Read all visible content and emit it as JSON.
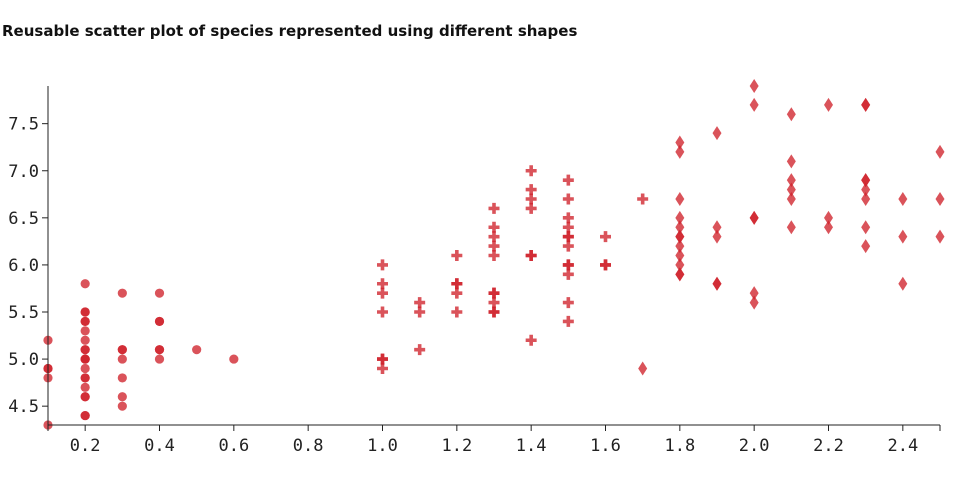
{
  "chart_data": {
    "type": "scatter",
    "title": "Reusable scatter plot of species represented using different shapes",
    "xlabel": "",
    "ylabel": "",
    "xlim": [
      0.1,
      2.5
    ],
    "ylim": [
      4.3,
      7.9
    ],
    "x_ticks": [
      "0.2",
      "0.4",
      "0.6",
      "0.8",
      "1.0",
      "1.2",
      "1.4",
      "1.6",
      "1.8",
      "2.0",
      "2.2",
      "2.4"
    ],
    "y_ticks": [
      "4.5",
      "5.0",
      "5.5",
      "6.0",
      "6.5",
      "7.0",
      "7.5"
    ],
    "grid": false,
    "color": "#d0232b",
    "series": [
      {
        "shape": "circle",
        "points": [
          [
            0.1,
            5.2
          ],
          [
            0.1,
            4.9
          ],
          [
            0.1,
            4.9
          ],
          [
            0.1,
            4.8
          ],
          [
            0.1,
            4.3
          ],
          [
            0.2,
            5.8
          ],
          [
            0.2,
            5.5
          ],
          [
            0.2,
            5.5
          ],
          [
            0.2,
            5.4
          ],
          [
            0.2,
            5.4
          ],
          [
            0.2,
            5.3
          ],
          [
            0.2,
            5.2
          ],
          [
            0.2,
            5.1
          ],
          [
            0.2,
            5.1
          ],
          [
            0.2,
            5.0
          ],
          [
            0.2,
            5.0
          ],
          [
            0.2,
            5.0
          ],
          [
            0.2,
            4.9
          ],
          [
            0.2,
            4.8
          ],
          [
            0.2,
            4.8
          ],
          [
            0.2,
            4.7
          ],
          [
            0.2,
            4.6
          ],
          [
            0.2,
            4.6
          ],
          [
            0.2,
            4.4
          ],
          [
            0.2,
            4.4
          ],
          [
            0.3,
            5.7
          ],
          [
            0.3,
            5.1
          ],
          [
            0.3,
            5.1
          ],
          [
            0.3,
            5.0
          ],
          [
            0.3,
            4.8
          ],
          [
            0.3,
            4.6
          ],
          [
            0.3,
            4.5
          ],
          [
            0.4,
            5.7
          ],
          [
            0.4,
            5.4
          ],
          [
            0.4,
            5.4
          ],
          [
            0.4,
            5.1
          ],
          [
            0.4,
            5.1
          ],
          [
            0.4,
            5.0
          ],
          [
            0.5,
            5.1
          ],
          [
            0.6,
            5.0
          ]
        ]
      },
      {
        "shape": "cross",
        "points": [
          [
            1.0,
            6.0
          ],
          [
            1.0,
            5.8
          ],
          [
            1.0,
            5.7
          ],
          [
            1.0,
            5.5
          ],
          [
            1.0,
            5.0
          ],
          [
            1.0,
            5.0
          ],
          [
            1.0,
            4.9
          ],
          [
            1.1,
            5.6
          ],
          [
            1.1,
            5.5
          ],
          [
            1.1,
            5.1
          ],
          [
            1.2,
            6.1
          ],
          [
            1.2,
            5.8
          ],
          [
            1.2,
            5.8
          ],
          [
            1.2,
            5.7
          ],
          [
            1.2,
            5.5
          ],
          [
            1.3,
            6.6
          ],
          [
            1.3,
            6.4
          ],
          [
            1.3,
            6.3
          ],
          [
            1.3,
            6.2
          ],
          [
            1.3,
            6.1
          ],
          [
            1.3,
            5.7
          ],
          [
            1.3,
            5.7
          ],
          [
            1.3,
            5.6
          ],
          [
            1.3,
            5.5
          ],
          [
            1.3,
            5.5
          ],
          [
            1.4,
            7.0
          ],
          [
            1.4,
            6.8
          ],
          [
            1.4,
            6.7
          ],
          [
            1.4,
            6.6
          ],
          [
            1.4,
            6.1
          ],
          [
            1.4,
            6.1
          ],
          [
            1.4,
            5.2
          ],
          [
            1.5,
            6.9
          ],
          [
            1.5,
            6.7
          ],
          [
            1.5,
            6.5
          ],
          [
            1.5,
            6.4
          ],
          [
            1.5,
            6.3
          ],
          [
            1.5,
            6.3
          ],
          [
            1.5,
            6.2
          ],
          [
            1.5,
            6.0
          ],
          [
            1.5,
            6.0
          ],
          [
            1.5,
            5.9
          ],
          [
            1.5,
            5.6
          ],
          [
            1.5,
            5.4
          ],
          [
            1.6,
            6.3
          ],
          [
            1.6,
            6.0
          ],
          [
            1.6,
            6.0
          ],
          [
            1.7,
            6.7
          ]
        ]
      },
      {
        "shape": "diamond",
        "points": [
          [
            1.7,
            4.9
          ],
          [
            1.8,
            7.3
          ],
          [
            1.8,
            7.2
          ],
          [
            1.8,
            6.7
          ],
          [
            1.8,
            6.5
          ],
          [
            1.8,
            6.4
          ],
          [
            1.8,
            6.3
          ],
          [
            1.8,
            6.3
          ],
          [
            1.8,
            6.2
          ],
          [
            1.8,
            6.1
          ],
          [
            1.8,
            6.0
          ],
          [
            1.8,
            5.9
          ],
          [
            1.8,
            5.9
          ],
          [
            1.9,
            7.4
          ],
          [
            1.9,
            6.4
          ],
          [
            1.9,
            6.3
          ],
          [
            1.9,
            5.8
          ],
          [
            1.9,
            5.8
          ],
          [
            2.0,
            7.9
          ],
          [
            2.0,
            7.7
          ],
          [
            2.0,
            6.5
          ],
          [
            2.0,
            6.5
          ],
          [
            2.0,
            5.7
          ],
          [
            2.0,
            5.6
          ],
          [
            2.1,
            7.6
          ],
          [
            2.1,
            7.1
          ],
          [
            2.1,
            6.9
          ],
          [
            2.1,
            6.8
          ],
          [
            2.1,
            6.7
          ],
          [
            2.1,
            6.4
          ],
          [
            2.2,
            7.7
          ],
          [
            2.2,
            6.5
          ],
          [
            2.2,
            6.4
          ],
          [
            2.3,
            7.7
          ],
          [
            2.3,
            7.7
          ],
          [
            2.3,
            6.9
          ],
          [
            2.3,
            6.9
          ],
          [
            2.3,
            6.8
          ],
          [
            2.3,
            6.7
          ],
          [
            2.3,
            6.4
          ],
          [
            2.3,
            6.2
          ],
          [
            2.4,
            6.7
          ],
          [
            2.4,
            6.3
          ],
          [
            2.4,
            5.8
          ],
          [
            2.5,
            7.2
          ],
          [
            2.5,
            6.7
          ],
          [
            2.5,
            6.3
          ]
        ]
      }
    ]
  }
}
